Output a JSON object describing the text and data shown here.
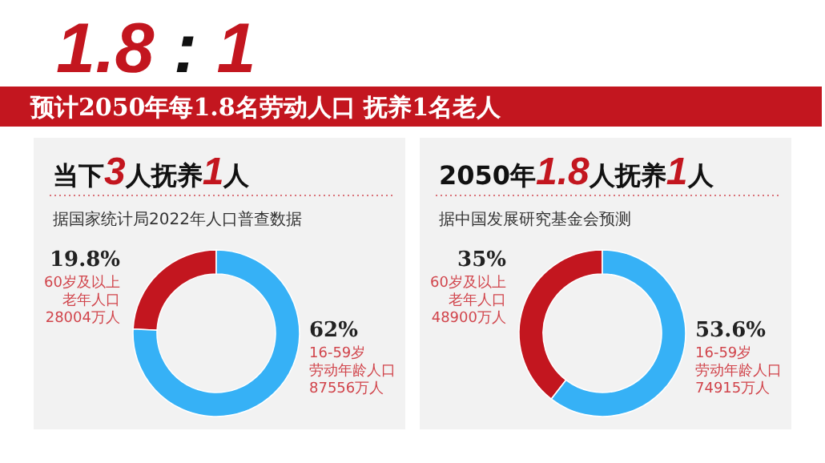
{
  "chart_data": [
    {
      "type": "other",
      "title": "1.8 : 1",
      "subtitle": "预计2050年每1.8名劳动人口  抚养1名老人"
    },
    {
      "type": "donut",
      "title": "当下3人抚养1人",
      "subtitle": "据国家统计局2022年人口普查数据",
      "categories": [
        "60岁及以上老年人口28004万人",
        "16-59岁劳动年龄人口87556万人"
      ],
      "values": [
        19.8,
        62
      ],
      "value_labels": [
        "19.8%",
        "62%"
      ],
      "colors": [
        "#c3161f",
        "#36b1f6"
      ]
    },
    {
      "type": "donut",
      "title": "2050年1.8人抚养1人",
      "subtitle": "据中国发展研究基金会预测",
      "categories": [
        "60岁及以上老年人口48900万人",
        "16-59岁劳动年龄人口74915万人"
      ],
      "values": [
        35,
        53.6
      ],
      "value_labels": [
        "35%",
        "53.6%"
      ],
      "colors": [
        "#c3161f",
        "#36b1f6"
      ]
    }
  ]
}
